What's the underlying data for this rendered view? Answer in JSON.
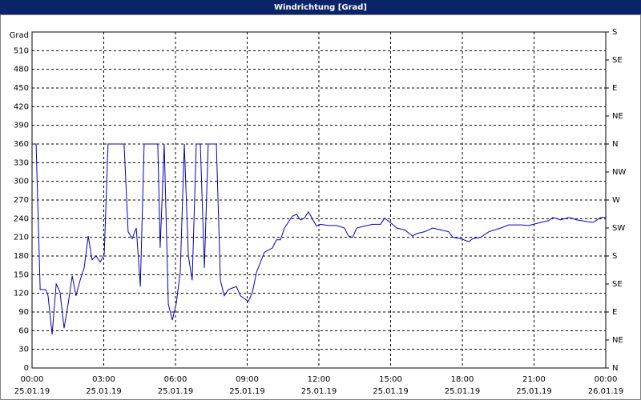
{
  "chart_data": {
    "type": "line",
    "title": "Windrichtung [Grad]",
    "y_label": "Grad",
    "x": [
      0,
      0.17,
      0.34,
      0.57,
      0.67,
      0.84,
      1.01,
      1.17,
      1.34,
      1.51,
      1.68,
      1.84,
      2.01,
      2.18,
      2.35,
      2.51,
      2.68,
      2.85,
      3.02,
      3.18,
      3.85,
      4.02,
      4.19,
      4.36,
      4.53,
      4.69,
      5.26,
      5.36,
      5.53,
      5.7,
      5.87,
      6.03,
      6.2,
      6.37,
      6.54,
      6.7,
      6.87,
      7.04,
      7.21,
      7.37,
      7.71,
      7.88,
      8.04,
      8.21,
      8.55,
      8.72,
      9.05,
      9.22,
      9.39,
      9.72,
      10.06,
      10.22,
      10.39,
      10.56,
      10.89,
      11.06,
      11.23,
      11.4,
      11.56,
      11.9,
      12.07,
      12.4,
      12.74,
      13.07,
      13.24,
      13.41,
      13.58,
      13.91,
      14.25,
      14.58,
      14.75,
      15.08,
      15.25,
      15.59,
      15.92,
      16.09,
      16.42,
      16.76,
      17.1,
      17.43,
      17.6,
      17.93,
      18.27,
      18.44,
      18.77,
      19.11,
      19.61,
      19.94,
      20.45,
      20.78,
      21.28,
      21.62,
      21.79,
      22.12,
      22.46,
      22.79,
      23.46,
      23.8,
      24.0
    ],
    "series": [
      {
        "name": "Windrichtung",
        "color": "#0000c8",
        "values": [
          360,
          360,
          126,
          126,
          116,
          54,
          135,
          122,
          64,
          103,
          148,
          116,
          141,
          161,
          212,
          174,
          180,
          170,
          183,
          360,
          360,
          219,
          208,
          225,
          131,
          360,
          360,
          193,
          360,
          103,
          77,
          103,
          154,
          360,
          180,
          141,
          360,
          360,
          161,
          360,
          360,
          141,
          116,
          126,
          131,
          116,
          107,
          122,
          154,
          186,
          193,
          206,
          206,
          225,
          244,
          247,
          238,
          241,
          251,
          228,
          231,
          229,
          229,
          225,
          212,
          210,
          225,
          228,
          231,
          231,
          241,
          231,
          225,
          222,
          212,
          216,
          219,
          225,
          222,
          219,
          210,
          208,
          203,
          208,
          210,
          219,
          225,
          230,
          230,
          229,
          234,
          237,
          242,
          238,
          242,
          238,
          234,
          242,
          242
        ]
      }
    ],
    "xlim": [
      0,
      24
    ],
    "xticks": [
      {
        "value": 0,
        "label": "00:00"
      },
      {
        "value": 3,
        "label": "03:00"
      },
      {
        "value": 6,
        "label": "06:00"
      },
      {
        "value": 9,
        "label": "09:00"
      },
      {
        "value": 12,
        "label": "12:00"
      },
      {
        "value": 15,
        "label": "15:00"
      },
      {
        "value": 18,
        "label": "18:00"
      },
      {
        "value": 21,
        "label": "21:00"
      },
      {
        "value": 24,
        "label": "00:00"
      }
    ],
    "xtick_dates": [
      "25.01.19",
      "25.01.19",
      "25.01.19",
      "25.01.19",
      "25.01.19",
      "25.01.19",
      "25.01.19",
      "25.01.19",
      "26.01.19"
    ],
    "ylim": [
      0,
      540
    ],
    "yticks": [
      0,
      30,
      60,
      90,
      120,
      150,
      180,
      210,
      240,
      270,
      300,
      330,
      360,
      390,
      420,
      450,
      480,
      510
    ],
    "y2lim": [
      0,
      540
    ],
    "y2ticks": [
      {
        "value": 0,
        "label": "N"
      },
      {
        "value": 45,
        "label": "NE"
      },
      {
        "value": 90,
        "label": "E"
      },
      {
        "value": 135,
        "label": "SE"
      },
      {
        "value": 180,
        "label": "S"
      },
      {
        "value": 225,
        "label": "SW"
      },
      {
        "value": 270,
        "label": "W"
      },
      {
        "value": 315,
        "label": "NW"
      },
      {
        "value": 360,
        "label": "N"
      },
      {
        "value": 405,
        "label": "NE"
      },
      {
        "value": 450,
        "label": "E"
      },
      {
        "value": 495,
        "label": "SE"
      },
      {
        "value": 540,
        "label": "S"
      }
    ],
    "grid": true
  }
}
